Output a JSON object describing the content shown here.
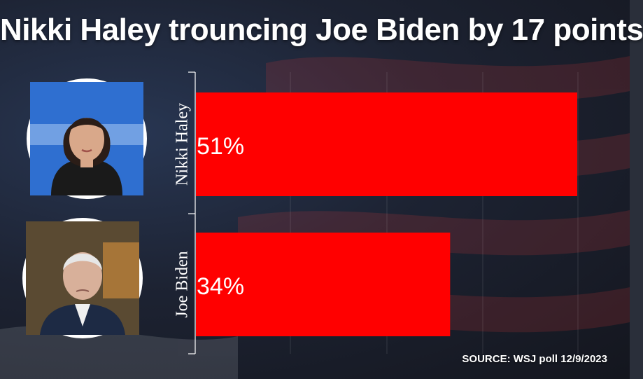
{
  "title": "Nikki Haley trouncing Joe Biden by 17 points",
  "source": "SOURCE: WSJ poll 12/9/2023",
  "colors": {
    "bar": "#ff0000",
    "text": "#ffffff",
    "background": "#262b36"
  },
  "people": [
    {
      "name": "Nikki Haley",
      "photo": "nikki-haley-photo"
    },
    {
      "name": "Joe Biden",
      "photo": "joe-biden-photo"
    }
  ],
  "chart_data": {
    "type": "bar",
    "orientation": "horizontal",
    "categories": [
      "Nikki Haley",
      "Joe Biden"
    ],
    "values": [
      51,
      34
    ],
    "value_labels": [
      "51%",
      "34%"
    ],
    "xlim": [
      0,
      51
    ],
    "grid": true,
    "title": "Nikki Haley trouncing Joe Biden by 17 points"
  }
}
